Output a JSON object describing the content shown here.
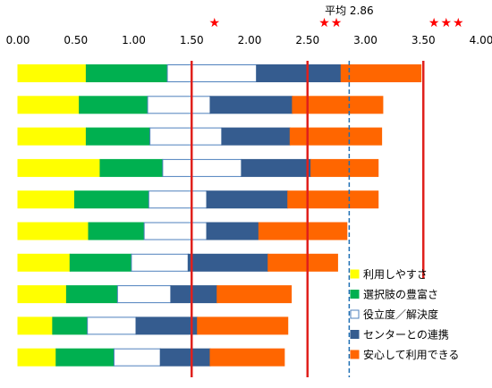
{
  "chart_data": {
    "type": "bar",
    "orientation": "horizontal",
    "stacked": true,
    "xlim": [
      0,
      4
    ],
    "x_ticks": [
      "0.00",
      "0.50",
      "1.00",
      "1.50",
      "2.00",
      "2.50",
      "3.00",
      "3.50",
      "4.00"
    ],
    "x_axis_position": "top",
    "grid": false,
    "legend_position": "bottom-right",
    "categories": [
      "",
      "",
      "",
      "",
      "",
      "",
      "",
      "",
      "",
      ""
    ],
    "series": [
      {
        "name": "利用しやすさ",
        "color": "#ffff00",
        "values": [
          0.59,
          0.53,
          0.59,
          0.71,
          0.49,
          0.61,
          0.45,
          0.42,
          0.3,
          0.33
        ]
      },
      {
        "name": "選択肢の豊富さ",
        "color": "#00b050",
        "values": [
          0.7,
          0.59,
          0.55,
          0.54,
          0.64,
          0.48,
          0.53,
          0.44,
          0.3,
          0.5
        ]
      },
      {
        "name": "役立度／解決度",
        "color": "#ffffff",
        "values": [
          0.77,
          0.54,
          0.62,
          0.68,
          0.5,
          0.54,
          0.49,
          0.46,
          0.42,
          0.4
        ]
      },
      {
        "name": "センターとの連携",
        "color": "#355c8f",
        "values": [
          0.73,
          0.71,
          0.59,
          0.6,
          0.7,
          0.45,
          0.69,
          0.4,
          0.53,
          0.43
        ]
      },
      {
        "name": "安心して利用できる",
        "color": "#ff6600",
        "values": [
          0.69,
          0.78,
          0.79,
          0.58,
          0.78,
          0.76,
          0.6,
          0.64,
          0.78,
          0.64
        ]
      }
    ],
    "reference_lines": [
      {
        "value": 1.5,
        "style": "solid",
        "color": "#e0201c",
        "label": "★",
        "span": "full"
      },
      {
        "value": 2.5,
        "style": "solid",
        "color": "#e0201c",
        "label": "★★",
        "span": "full"
      },
      {
        "value": 3.5,
        "style": "solid",
        "color": "#e0201c",
        "label": "★★★",
        "span": "partial",
        "end_row": 6
      },
      {
        "value": 2.86,
        "style": "dashed",
        "color": "#1f6fb4",
        "label": "平均 2.86",
        "span": "full"
      }
    ]
  }
}
